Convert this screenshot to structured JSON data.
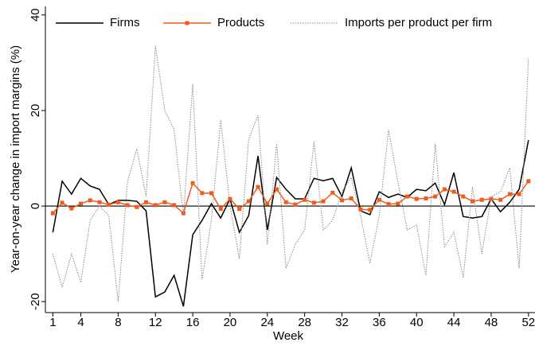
{
  "chart_data": {
    "type": "line",
    "y_label": "Year-on-year change in import margins (%)",
    "x_label": "Week",
    "x": [
      1,
      2,
      3,
      4,
      5,
      6,
      7,
      8,
      9,
      10,
      11,
      12,
      13,
      14,
      15,
      16,
      17,
      18,
      19,
      20,
      21,
      22,
      23,
      24,
      25,
      26,
      27,
      28,
      29,
      30,
      31,
      32,
      33,
      34,
      35,
      36,
      37,
      38,
      39,
      40,
      41,
      42,
      43,
      44,
      45,
      46,
      47,
      48,
      49,
      50,
      51,
      52
    ],
    "xlim": [
      0.2,
      52.7
    ],
    "xticks": [
      1,
      4,
      8,
      12,
      16,
      20,
      24,
      28,
      32,
      36,
      40,
      44,
      48,
      52
    ],
    "ylim": [
      -22.3,
      41.8
    ],
    "yticks": [
      -20,
      0,
      20,
      40
    ],
    "zero_line": true,
    "series": [
      {
        "name": "Firms",
        "color": "#000000",
        "style": "solid",
        "marker": false,
        "values": [
          -5.5,
          5.2,
          2.5,
          5.8,
          4.2,
          3.5,
          0.3,
          1.2,
          1.2,
          1.0,
          -1.0,
          -19,
          -18,
          -14.5,
          -21,
          -6,
          -3,
          0.5,
          -2.5,
          1.5,
          -5.5,
          -2,
          10.5,
          -5,
          6,
          3.5,
          1.5,
          1.5,
          5.8,
          5.3,
          5.8,
          2,
          8,
          -1,
          -1.8,
          3,
          1.8,
          2.5,
          1.8,
          3.5,
          3.2,
          4.8,
          0.3,
          7,
          -2.2,
          -2.5,
          -2.2,
          1.5,
          -1.2,
          0.8,
          3.5,
          13.8
        ]
      },
      {
        "name": "Products",
        "color": "#f05a1a",
        "style": "solid",
        "marker": true,
        "values": [
          -1.5,
          0.7,
          -0.5,
          0.5,
          1.2,
          0.8,
          0.3,
          0.8,
          0.2,
          -0.2,
          0.8,
          0.2,
          0.8,
          0.2,
          -1.5,
          4.8,
          2.7,
          2.7,
          -0.6,
          1.5,
          -0.6,
          1.0,
          4.0,
          0.5,
          3.5,
          0.8,
          0.3,
          1.3,
          0.7,
          1.0,
          2.8,
          1.2,
          1.6,
          -0.7,
          -0.8,
          1.3,
          0.4,
          0.5,
          2.0,
          1.5,
          1.6,
          2.0,
          3.5,
          3.0,
          2.0,
          1.0,
          1.3,
          1.5,
          1.3,
          2.5,
          2.5,
          5.2
        ]
      },
      {
        "name": "Imports per product per firm",
        "color": "#888888",
        "style": "dotted",
        "marker": false,
        "values": [
          -10,
          -17,
          -10,
          -16,
          -3,
          0,
          -2,
          -20,
          5,
          12,
          2,
          33.5,
          20,
          16,
          -2,
          25.5,
          -15.5,
          -3,
          18,
          0,
          -11,
          14,
          19,
          -8,
          13,
          -13,
          -8,
          -5,
          13.5,
          -5,
          -3,
          3,
          6,
          -2,
          -12,
          -2,
          16,
          5,
          -5,
          -4,
          -14.5,
          13,
          -8.5,
          -5.5,
          -15,
          4,
          -10,
          2,
          3,
          8,
          -13,
          31
        ]
      }
    ]
  }
}
